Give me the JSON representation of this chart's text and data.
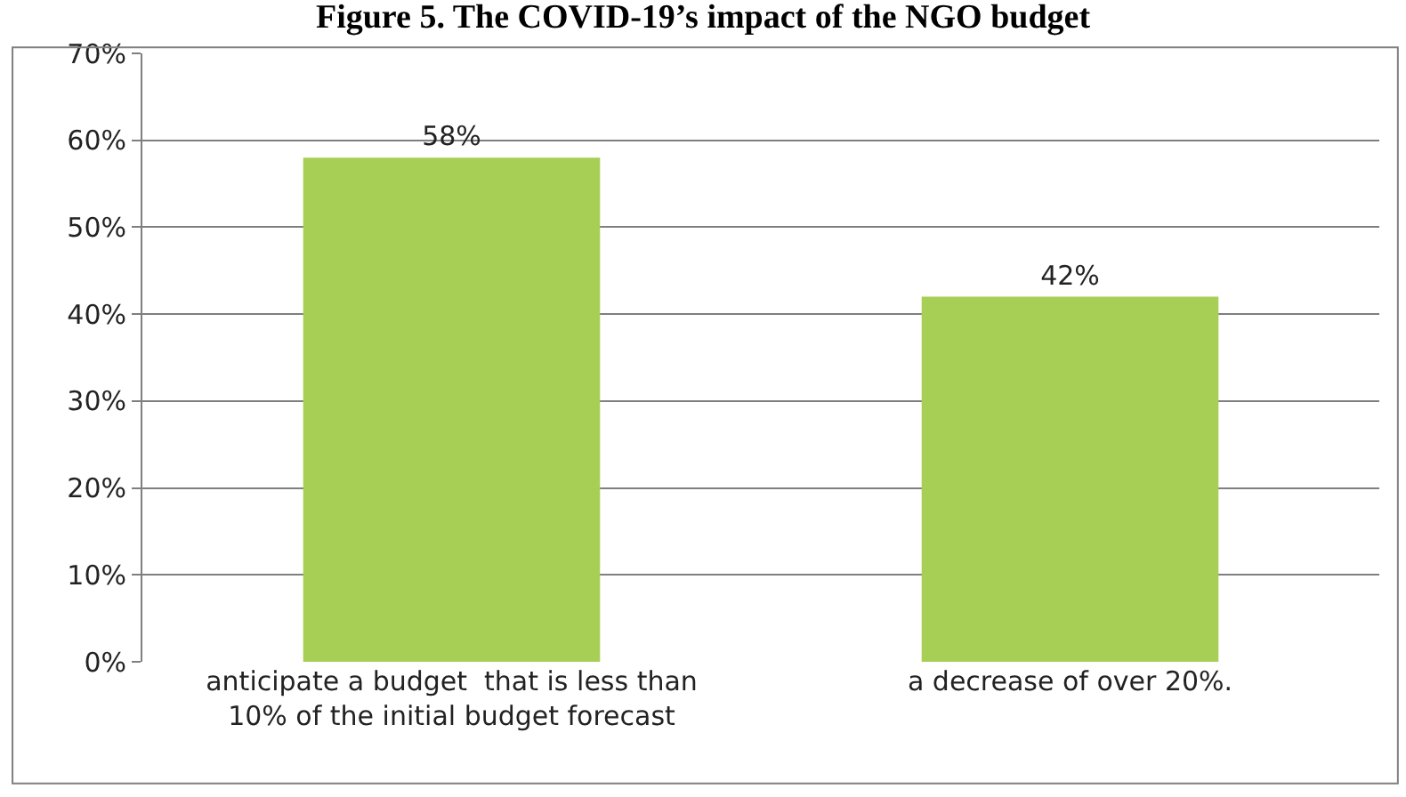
{
  "chart_data": {
    "type": "bar",
    "title": "Figure 5. The COVID-19’s impact of the NGO budget",
    "categories": [
      "anticipate a budget  that is less than\n10% of the initial budget forecast",
      "a decrease of over 20%."
    ],
    "values": [
      58,
      42
    ],
    "color": "#a8cf55",
    "value_labels": [
      "58%",
      "42%"
    ],
    "ylim": [
      0,
      70
    ],
    "yticks": [
      {
        "value": 0,
        "label": "0%"
      },
      {
        "value": 10,
        "label": "10%"
      },
      {
        "value": 20,
        "label": "20%"
      },
      {
        "value": 30,
        "label": "30%"
      },
      {
        "value": 40,
        "label": "40%"
      },
      {
        "value": 50,
        "label": "50%"
      },
      {
        "value": 60,
        "label": "60%"
      },
      {
        "value": 70,
        "label": "70%"
      }
    ],
    "grid": "y"
  }
}
